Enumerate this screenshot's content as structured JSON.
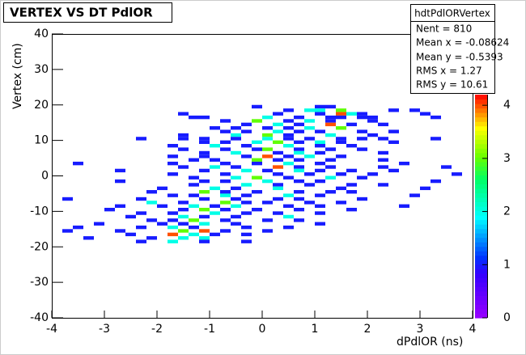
{
  "chart_data": {
    "type": "heatmap2d",
    "title": "VERTEX VS DT PdlOR",
    "x_label": "dPdlOR (ns)",
    "y_label": "Vertex (cm)",
    "xlim": [
      -4,
      4
    ],
    "xticks": [
      -4,
      -3,
      -2,
      -1,
      0,
      1,
      2,
      3,
      4
    ],
    "ylim": [
      -40,
      40
    ],
    "yticks": [
      -40,
      -30,
      -20,
      -10,
      0,
      10,
      20,
      30,
      40
    ],
    "zlim": [
      0,
      4.2
    ],
    "zticks": [
      0,
      1,
      2,
      3,
      4
    ],
    "cell_size": [
      0.2,
      1
    ],
    "colorscale": [
      [
        0,
        "#9900ff"
      ],
      [
        0.2,
        "#3300ff"
      ],
      [
        0.27,
        "#0033ff"
      ],
      [
        0.45,
        "#00ffff"
      ],
      [
        0.62,
        "#00ff66"
      ],
      [
        0.72,
        "#66ff00"
      ],
      [
        0.85,
        "#ffff00"
      ],
      [
        0.97,
        "#ff3300"
      ],
      [
        1,
        "#ff0000"
      ]
    ],
    "stats": {
      "name": "hdtPdlORVertex",
      "lines": [
        "Nent = 810",
        "Mean x = -0.08624",
        "Mean y = -0.5393",
        "RMS x =  1.27",
        "RMS y =  10.61"
      ]
    },
    "cells": [
      [
        -0.2,
        19,
        1
      ],
      [
        1.0,
        19,
        1
      ],
      [
        1.2,
        19,
        1
      ],
      [
        0.4,
        18,
        1
      ],
      [
        0.8,
        18,
        2
      ],
      [
        1.0,
        18,
        2
      ],
      [
        1.4,
        18,
        3
      ],
      [
        2.4,
        18,
        1
      ],
      [
        2.8,
        18,
        1
      ],
      [
        -1.6,
        17,
        1
      ],
      [
        0.2,
        17,
        1
      ],
      [
        1.0,
        17,
        1
      ],
      [
        1.4,
        17,
        4
      ],
      [
        1.6,
        17,
        2
      ],
      [
        1.8,
        17,
        1
      ],
      [
        3.0,
        17,
        1
      ],
      [
        -1.4,
        16,
        1
      ],
      [
        -1.2,
        16,
        1
      ],
      [
        0.0,
        16,
        2
      ],
      [
        0.6,
        16,
        1
      ],
      [
        1.2,
        16,
        1
      ],
      [
        1.4,
        16,
        1
      ],
      [
        1.8,
        16,
        1
      ],
      [
        2.0,
        16,
        1
      ],
      [
        3.2,
        16,
        1
      ],
      [
        -0.8,
        15,
        1
      ],
      [
        -0.2,
        15,
        3
      ],
      [
        0.4,
        15,
        1
      ],
      [
        0.8,
        15,
        2
      ],
      [
        1.2,
        15,
        1
      ],
      [
        2.0,
        15,
        1
      ],
      [
        -0.4,
        14,
        1
      ],
      [
        0.2,
        14,
        2
      ],
      [
        0.6,
        14,
        1
      ],
      [
        1.2,
        14,
        4
      ],
      [
        1.6,
        14,
        1
      ],
      [
        2.2,
        14,
        1
      ],
      [
        -1.0,
        13,
        1
      ],
      [
        -0.6,
        13,
        1
      ],
      [
        0.0,
        13,
        1
      ],
      [
        0.4,
        13,
        1
      ],
      [
        0.8,
        13,
        2
      ],
      [
        1.4,
        13,
        3
      ],
      [
        -0.8,
        12,
        1
      ],
      [
        -0.4,
        12,
        1
      ],
      [
        0.2,
        12,
        2
      ],
      [
        0.6,
        12,
        1
      ],
      [
        1.0,
        12,
        1
      ],
      [
        1.8,
        12,
        1
      ],
      [
        2.4,
        12,
        1
      ],
      [
        -1.6,
        11,
        1
      ],
      [
        -0.6,
        11,
        2
      ],
      [
        0.0,
        11,
        3
      ],
      [
        0.4,
        11,
        1
      ],
      [
        1.2,
        11,
        2
      ],
      [
        2.0,
        11,
        1
      ],
      [
        -2.4,
        10,
        1
      ],
      [
        -1.6,
        10,
        1
      ],
      [
        -1.2,
        10,
        1
      ],
      [
        -0.6,
        10,
        1
      ],
      [
        0.0,
        10,
        2
      ],
      [
        0.4,
        10,
        1
      ],
      [
        0.8,
        10,
        1
      ],
      [
        1.4,
        10,
        1
      ],
      [
        1.8,
        10,
        1
      ],
      [
        2.2,
        10,
        1
      ],
      [
        3.2,
        10,
        1
      ],
      [
        -1.2,
        9,
        1
      ],
      [
        -0.8,
        9,
        1
      ],
      [
        -0.2,
        9,
        2
      ],
      [
        0.2,
        9,
        3
      ],
      [
        0.6,
        9,
        1
      ],
      [
        1.0,
        9,
        2
      ],
      [
        1.4,
        9,
        1
      ],
      [
        2.4,
        9,
        1
      ],
      [
        -1.8,
        8,
        1
      ],
      [
        -1.0,
        8,
        2
      ],
      [
        -0.4,
        8,
        1
      ],
      [
        0.4,
        8,
        2
      ],
      [
        1.0,
        8,
        1
      ],
      [
        1.6,
        8,
        1
      ],
      [
        -1.6,
        7,
        1
      ],
      [
        -0.8,
        7,
        1
      ],
      [
        -0.2,
        7,
        1
      ],
      [
        0.0,
        7,
        3
      ],
      [
        0.6,
        7,
        1
      ],
      [
        1.2,
        7,
        1
      ],
      [
        1.8,
        7,
        1
      ],
      [
        -1.2,
        6,
        1
      ],
      [
        -0.6,
        6,
        2
      ],
      [
        0.2,
        6,
        1
      ],
      [
        0.6,
        6,
        2
      ],
      [
        1.0,
        6,
        1
      ],
      [
        2.2,
        6,
        1
      ],
      [
        -1.8,
        5,
        1
      ],
      [
        -1.2,
        5,
        1
      ],
      [
        -0.4,
        5,
        1
      ],
      [
        0.0,
        5,
        4
      ],
      [
        0.4,
        5,
        1
      ],
      [
        0.8,
        5,
        2
      ],
      [
        1.4,
        5,
        1
      ],
      [
        -1.4,
        4,
        1
      ],
      [
        -1.0,
        4,
        1
      ],
      [
        -0.2,
        4,
        3
      ],
      [
        0.2,
        4,
        1
      ],
      [
        0.6,
        4,
        1
      ],
      [
        1.2,
        4,
        1
      ],
      [
        2.2,
        4,
        1
      ],
      [
        -3.6,
        3,
        1
      ],
      [
        -1.8,
        3,
        1
      ],
      [
        -0.8,
        3,
        1
      ],
      [
        -0.2,
        3,
        1
      ],
      [
        0.4,
        3,
        2
      ],
      [
        1.0,
        3,
        1
      ],
      [
        2.6,
        3,
        1
      ],
      [
        -1.6,
        2,
        1
      ],
      [
        -1.0,
        2,
        2
      ],
      [
        -0.6,
        2,
        1
      ],
      [
        0.2,
        2,
        4
      ],
      [
        0.6,
        2,
        1
      ],
      [
        1.2,
        2,
        1
      ],
      [
        2.2,
        2,
        1
      ],
      [
        3.4,
        2,
        1
      ],
      [
        -2.8,
        1,
        1
      ],
      [
        -1.2,
        1,
        1
      ],
      [
        -0.4,
        1,
        2
      ],
      [
        0.0,
        1,
        1
      ],
      [
        0.6,
        1,
        2
      ],
      [
        1.0,
        1,
        1
      ],
      [
        1.6,
        1,
        1
      ],
      [
        2.4,
        1,
        1
      ],
      [
        -1.8,
        0,
        1
      ],
      [
        -0.8,
        0,
        1
      ],
      [
        0.2,
        0,
        1
      ],
      [
        0.8,
        0,
        1
      ],
      [
        1.4,
        0,
        1
      ],
      [
        2.0,
        0,
        1
      ],
      [
        3.6,
        0,
        1
      ],
      [
        -1.4,
        -1,
        1
      ],
      [
        -0.6,
        -1,
        2
      ],
      [
        -0.2,
        -1,
        3
      ],
      [
        0.4,
        -1,
        1
      ],
      [
        1.2,
        -1,
        2
      ],
      [
        1.8,
        -1,
        1
      ],
      [
        -2.8,
        -2,
        1
      ],
      [
        -1.2,
        -2,
        1
      ],
      [
        -0.8,
        -2,
        1
      ],
      [
        0.0,
        -2,
        2
      ],
      [
        0.6,
        -2,
        1
      ],
      [
        1.0,
        -2,
        1
      ],
      [
        3.2,
        -2,
        1
      ],
      [
        -1.4,
        -3,
        1
      ],
      [
        -0.4,
        -3,
        2
      ],
      [
        0.2,
        -3,
        1
      ],
      [
        0.8,
        -3,
        1
      ],
      [
        1.6,
        -3,
        1
      ],
      [
        2.2,
        -3,
        1
      ],
      [
        -2.0,
        -4,
        1
      ],
      [
        -1.0,
        -4,
        2
      ],
      [
        -0.6,
        -4,
        1
      ],
      [
        0.2,
        -4,
        2
      ],
      [
        1.4,
        -4,
        1
      ],
      [
        3.0,
        -4,
        1
      ],
      [
        -2.2,
        -5,
        1
      ],
      [
        -1.2,
        -5,
        3
      ],
      [
        -0.8,
        -5,
        1
      ],
      [
        -0.2,
        -5,
        1
      ],
      [
        0.6,
        -5,
        1
      ],
      [
        1.2,
        -5,
        1
      ],
      [
        1.6,
        -5,
        1
      ],
      [
        -1.8,
        -6,
        1
      ],
      [
        -1.4,
        -6,
        1
      ],
      [
        -0.8,
        -6,
        2
      ],
      [
        -0.4,
        -6,
        1
      ],
      [
        0.4,
        -6,
        2
      ],
      [
        1.0,
        -6,
        1
      ],
      [
        2.8,
        -6,
        1
      ],
      [
        -3.8,
        -7,
        1
      ],
      [
        -2.4,
        -7,
        1
      ],
      [
        -1.2,
        -7,
        1
      ],
      [
        -0.6,
        -7,
        1
      ],
      [
        0.2,
        -7,
        1
      ],
      [
        0.6,
        -7,
        1
      ],
      [
        1.8,
        -7,
        1
      ],
      [
        -2.2,
        -8,
        2
      ],
      [
        -1.6,
        -8,
        1
      ],
      [
        -0.8,
        -8,
        3
      ],
      [
        -0.4,
        -8,
        1
      ],
      [
        0.0,
        -8,
        1
      ],
      [
        0.8,
        -8,
        1
      ],
      [
        1.4,
        -8,
        1
      ],
      [
        -2.8,
        -9,
        1
      ],
      [
        -2.0,
        -9,
        1
      ],
      [
        -1.4,
        -9,
        2
      ],
      [
        -1.0,
        -9,
        1
      ],
      [
        -0.6,
        -9,
        2
      ],
      [
        0.4,
        -9,
        1
      ],
      [
        1.0,
        -9,
        1
      ],
      [
        2.6,
        -9,
        1
      ],
      [
        -3.0,
        -10,
        1
      ],
      [
        -1.6,
        -10,
        1
      ],
      [
        -1.2,
        -10,
        3
      ],
      [
        -0.8,
        -10,
        1
      ],
      [
        -0.2,
        -10,
        1
      ],
      [
        0.6,
        -10,
        1
      ],
      [
        1.6,
        -10,
        1
      ],
      [
        -2.4,
        -11,
        1
      ],
      [
        -1.8,
        -11,
        1
      ],
      [
        -1.0,
        -11,
        2
      ],
      [
        -0.4,
        -11,
        1
      ],
      [
        0.2,
        -11,
        1
      ],
      [
        1.0,
        -11,
        1
      ],
      [
        -2.6,
        -12,
        1
      ],
      [
        -1.6,
        -12,
        2
      ],
      [
        -1.2,
        -12,
        1
      ],
      [
        -0.6,
        -12,
        1
      ],
      [
        0.4,
        -12,
        2
      ],
      [
        -2.2,
        -13,
        1
      ],
      [
        -1.8,
        -13,
        1
      ],
      [
        -1.4,
        -13,
        3
      ],
      [
        -0.8,
        -13,
        1
      ],
      [
        0.0,
        -13,
        1
      ],
      [
        0.6,
        -13,
        1
      ],
      [
        -3.2,
        -14,
        1
      ],
      [
        -2.0,
        -14,
        1
      ],
      [
        -1.6,
        -14,
        1
      ],
      [
        -1.2,
        -14,
        2
      ],
      [
        -0.6,
        -14,
        1
      ],
      [
        1.0,
        -14,
        1
      ],
      [
        -3.6,
        -15,
        1
      ],
      [
        -2.4,
        -15,
        1
      ],
      [
        -1.8,
        -15,
        2
      ],
      [
        -1.4,
        -15,
        1
      ],
      [
        -0.4,
        -15,
        1
      ],
      [
        0.4,
        -15,
        1
      ],
      [
        -3.8,
        -16,
        1
      ],
      [
        -2.8,
        -16,
        1
      ],
      [
        -1.6,
        -16,
        3
      ],
      [
        -1.2,
        -16,
        4
      ],
      [
        -0.8,
        -16,
        1
      ],
      [
        0.0,
        -16,
        1
      ],
      [
        -2.6,
        -17,
        1
      ],
      [
        -1.8,
        -17,
        4
      ],
      [
        -1.4,
        -17,
        2
      ],
      [
        -1.0,
        -17,
        1
      ],
      [
        -0.4,
        -17,
        1
      ],
      [
        -3.4,
        -18,
        1
      ],
      [
        -2.2,
        -18,
        1
      ],
      [
        -1.6,
        -18,
        2
      ],
      [
        -1.2,
        -18,
        2
      ],
      [
        -2.4,
        -19,
        1
      ],
      [
        -1.8,
        -19,
        2
      ],
      [
        -1.2,
        -19,
        1
      ],
      [
        -0.4,
        -19,
        1
      ]
    ]
  }
}
